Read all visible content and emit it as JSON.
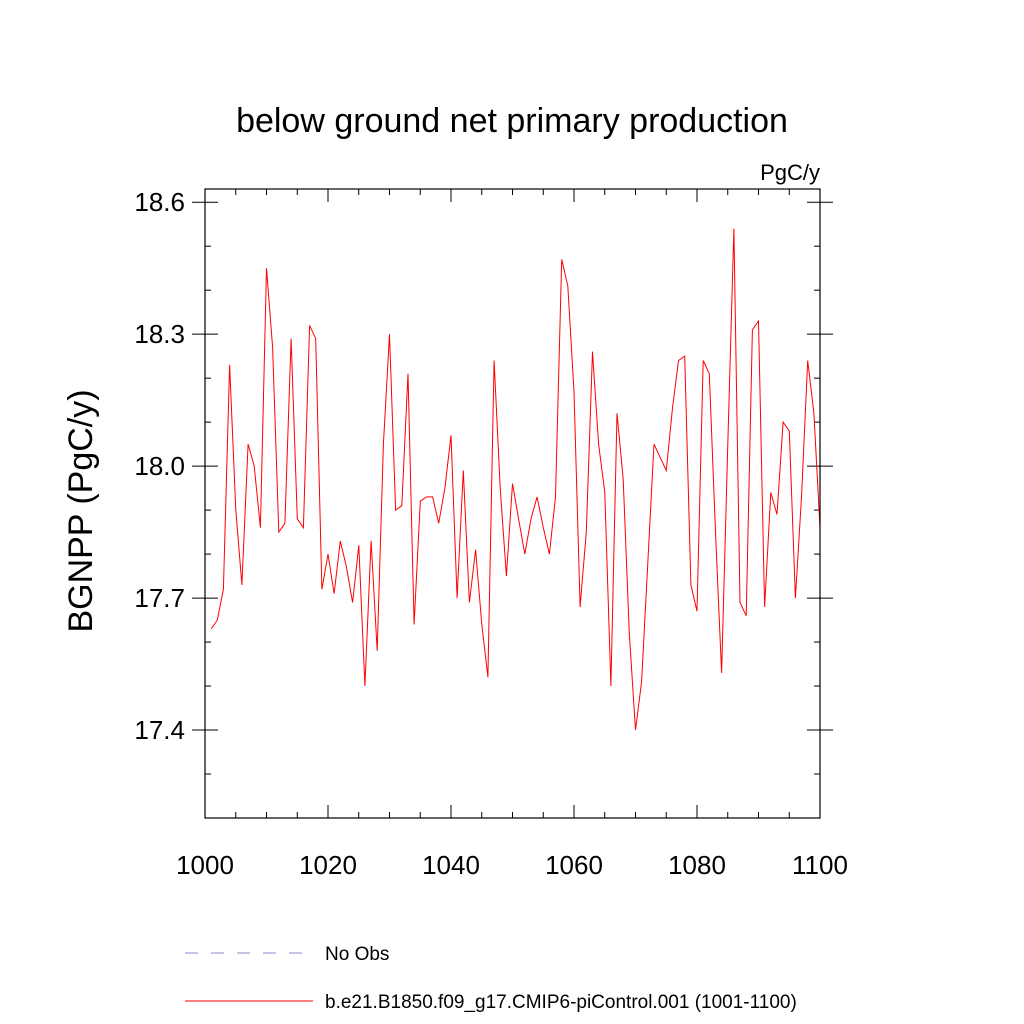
{
  "chart_data": {
    "type": "line",
    "title": "below ground net primary production",
    "units_label": "PgC/y",
    "xlabel": "",
    "ylabel": "BGNPP  (PgC/y)",
    "xlim": [
      1000,
      1100
    ],
    "ylim": [
      17.2,
      18.63
    ],
    "x_ticks": [
      1000,
      1020,
      1040,
      1060,
      1080,
      1100
    ],
    "y_ticks": [
      17.4,
      17.7,
      18.0,
      18.3,
      18.6
    ],
    "y_tick_labels": [
      "17.4",
      "17.7",
      "18.0",
      "18.3",
      "18.6"
    ],
    "x_minor_step": 5,
    "y_minor_step": 0.1,
    "series": [
      {
        "name": "b.e21.B1850.f09_g17.CMIP6-piControl.001 (1001-1100)",
        "color": "#ff0000",
        "style": "solid",
        "x": [
          1001,
          1002,
          1003,
          1004,
          1005,
          1006,
          1007,
          1008,
          1009,
          1010,
          1011,
          1012,
          1013,
          1014,
          1015,
          1016,
          1017,
          1018,
          1019,
          1020,
          1021,
          1022,
          1023,
          1024,
          1025,
          1026,
          1027,
          1028,
          1029,
          1030,
          1031,
          1032,
          1033,
          1034,
          1035,
          1036,
          1037,
          1038,
          1039,
          1040,
          1041,
          1042,
          1043,
          1044,
          1045,
          1046,
          1047,
          1048,
          1049,
          1050,
          1051,
          1052,
          1053,
          1054,
          1055,
          1056,
          1057,
          1058,
          1059,
          1060,
          1061,
          1062,
          1063,
          1064,
          1065,
          1066,
          1067,
          1068,
          1069,
          1070,
          1071,
          1072,
          1073,
          1074,
          1075,
          1076,
          1077,
          1078,
          1079,
          1080,
          1081,
          1082,
          1083,
          1084,
          1085,
          1086,
          1087,
          1088,
          1089,
          1090,
          1091,
          1092,
          1093,
          1094,
          1095,
          1096,
          1097,
          1098,
          1099,
          1100
        ],
        "values": [
          17.63,
          17.65,
          17.72,
          18.23,
          17.9,
          17.73,
          18.05,
          18.0,
          17.86,
          18.45,
          18.27,
          17.85,
          17.87,
          18.29,
          17.88,
          17.86,
          18.32,
          18.29,
          17.72,
          17.8,
          17.71,
          17.83,
          17.77,
          17.69,
          17.82,
          17.5,
          17.83,
          17.58,
          18.05,
          18.3,
          17.9,
          17.91,
          18.21,
          17.64,
          17.92,
          17.93,
          17.93,
          17.87,
          17.95,
          18.07,
          17.7,
          17.99,
          17.69,
          17.81,
          17.64,
          17.52,
          18.24,
          17.95,
          17.75,
          17.96,
          17.88,
          17.8,
          17.88,
          17.93,
          17.86,
          17.8,
          17.93,
          18.47,
          18.41,
          18.17,
          17.68,
          17.85,
          18.26,
          18.05,
          17.94,
          17.5,
          18.12,
          17.97,
          17.62,
          17.4,
          17.51,
          17.78,
          18.05,
          18.02,
          17.99,
          18.13,
          18.24,
          18.25,
          17.73,
          17.67,
          18.24,
          18.21,
          17.85,
          17.53,
          18.05,
          18.54,
          17.69,
          17.66,
          18.31,
          18.33,
          17.68,
          17.94,
          17.89,
          18.1,
          18.08,
          17.7,
          17.93,
          18.24,
          18.12,
          17.86
        ]
      }
    ],
    "legend": [
      {
        "label": "No Obs",
        "color": "#8888cc",
        "style": "dashed"
      },
      {
        "label": "b.e21.B1850.f09_g17.CMIP6-piControl.001 (1001-1100)",
        "color": "#ff0000",
        "style": "solid"
      }
    ]
  }
}
